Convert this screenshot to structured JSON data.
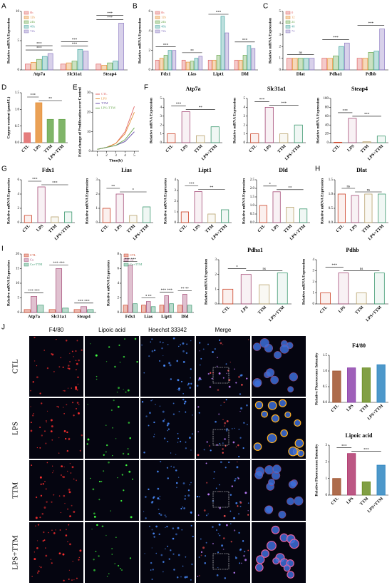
{
  "chart_data": [
    {
      "type": "bar",
      "panel": "A",
      "ylabel": "Relative mRNA Expression",
      "categories": [
        "Atp7a",
        "Slc31a1",
        "Steap4"
      ],
      "series": [
        {
          "name": "0h",
          "color": "#e06666",
          "values": [
            1,
            1,
            1
          ]
        },
        {
          "name": "12h",
          "color": "#e69138",
          "values": [
            1.3,
            1.2,
            0.8
          ]
        },
        {
          "name": "24h",
          "color": "#6aa84f",
          "values": [
            1.8,
            1.5,
            1.2
          ]
        },
        {
          "name": "48h",
          "color": "#45a5a0",
          "values": [
            2.3,
            3.5,
            1.5
          ]
        },
        {
          "name": "72h",
          "color": "#8e7cc3",
          "values": [
            2.8,
            3.2,
            8
          ]
        }
      ],
      "ylim": [
        0,
        10
      ],
      "yticks": [
        0,
        5,
        10
      ],
      "annotations": [
        "***",
        "***",
        "***",
        "***",
        "***",
        "***"
      ]
    },
    {
      "type": "bar",
      "panel": "B",
      "ylabel": "Relative mRNA Expression",
      "categories": [
        "Fdx1",
        "Lias",
        "Lipt1",
        "Dld"
      ],
      "series": [
        {
          "name": "0h",
          "color": "#e06666",
          "values": [
            1,
            1,
            1,
            1
          ]
        },
        {
          "name": "12h",
          "color": "#e69138",
          "values": [
            1.2,
            0.8,
            1,
            1
          ]
        },
        {
          "name": "24h",
          "color": "#6aa84f",
          "values": [
            1.5,
            0.9,
            1.5,
            1.5
          ]
        },
        {
          "name": "48h",
          "color": "#45a5a0",
          "values": [
            2,
            1.2,
            5.5,
            2.5
          ]
        },
        {
          "name": "72h",
          "color": "#8e7cc3",
          "values": [
            2,
            1.4,
            3.8,
            2.2
          ]
        }
      ],
      "ylim": [
        0,
        6
      ],
      "yticks": [
        0,
        2,
        4,
        6
      ],
      "annotations": [
        "***",
        "**",
        "***",
        "***"
      ]
    },
    {
      "type": "bar",
      "panel": "C",
      "ylabel": "Relative mRNA Expression",
      "categories": [
        "Dlat",
        "Pdha1",
        "Pdhb"
      ],
      "series": [
        {
          "name": "0",
          "color": "#e06666",
          "values": [
            1,
            1,
            1
          ]
        },
        {
          "name": "12",
          "color": "#e69138",
          "values": [
            1,
            1,
            1
          ]
        },
        {
          "name": "24",
          "color": "#6aa84f",
          "values": [
            1,
            1.2,
            1.5
          ]
        },
        {
          "name": "48",
          "color": "#45a5a0",
          "values": [
            1,
            2,
            1.6
          ]
        },
        {
          "name": "72",
          "color": "#8e7cc3",
          "values": [
            1,
            2.3,
            3.5
          ]
        }
      ],
      "ylim": [
        0,
        5
      ],
      "yticks": [
        0,
        1,
        2,
        3,
        4,
        5
      ],
      "annotations": [
        "ns",
        "***",
        "***"
      ]
    },
    {
      "type": "bar",
      "panel": "D",
      "ylabel": "Copper content (μmol/L)",
      "categories": [
        "CTL",
        "LPS",
        "TTM",
        "LPS+TTM"
      ],
      "values": [
        0.3,
        1.2,
        0.7,
        0.7
      ],
      "colors": [
        "#e06666",
        "#e69138",
        "#6aa84f",
        "#6aa84f"
      ],
      "filled": true,
      "ylim": [
        0,
        1.5
      ],
      "yticks": [
        {
          "value": 0,
          "label": "0.0"
        },
        {
          "value": 0.5,
          "label": "0.5"
        },
        {
          "value": 1,
          "label": "1.0"
        },
        {
          "value": 1.5,
          "label": "1.5"
        }
      ],
      "annotations": [
        "***",
        "**"
      ]
    },
    {
      "type": "line",
      "panel": "E",
      "ylabel": "Fold-change of Proliferation over Control",
      "xlabel": "Time(h)",
      "x": [
        1,
        2,
        3,
        4,
        5
      ],
      "xlim": [
        0.5,
        5.5
      ],
      "xticks": [
        1,
        2,
        3,
        4,
        5
      ],
      "series": [
        {
          "name": "CTL",
          "color": "#e06666",
          "values": [
            1,
            2,
            4,
            10,
            23
          ]
        },
        {
          "name": "LPS",
          "color": "#e69138",
          "values": [
            1,
            2,
            4,
            9,
            20
          ]
        },
        {
          "name": "TTM",
          "color": "#674ea7",
          "values": [
            1,
            2,
            3,
            5,
            10
          ]
        },
        {
          "name": "LPS+TTM",
          "color": "#6aa84f",
          "values": [
            1,
            2,
            3,
            6,
            12
          ]
        }
      ],
      "ylim": [
        0,
        30
      ],
      "yticks": [
        0,
        10,
        20,
        30
      ]
    },
    {
      "type": "bar",
      "panel": "F",
      "title": "Atp7a",
      "ylabel": "Relative mRNA Expression",
      "categories": [
        "CTL",
        "LPS",
        "TTM",
        "LPS+TTM"
      ],
      "values": [
        1,
        3.5,
        0.8,
        1.8
      ],
      "colors": [
        "#cc4125",
        "#a64d79",
        "#b7a16b",
        "#3d9970"
      ],
      "ylim": [
        0,
        5
      ],
      "yticks": [
        0,
        1,
        2,
        3,
        4,
        5
      ],
      "annotations": [
        "***",
        "**"
      ]
    },
    {
      "type": "bar",
      "title": "Slc31a1",
      "ylabel": "Relative mRNA Expression",
      "categories": [
        "CTL",
        "LPS",
        "TTM",
        "LPS+TTM"
      ],
      "values": [
        1,
        4,
        1,
        2
      ],
      "colors": [
        "#cc4125",
        "#a64d79",
        "#b7a16b",
        "#3d9970"
      ],
      "ylim": [
        0,
        5
      ],
      "yticks": [
        0,
        1,
        2,
        3,
        4,
        5
      ],
      "annotations": [
        "***",
        "***"
      ]
    },
    {
      "type": "bar",
      "title": "Steap4",
      "ylabel": "Relative mRNA Expression",
      "categories": [
        "CTL",
        "LPS",
        "TTM",
        "LPS+TTM"
      ],
      "values": [
        1,
        55,
        2,
        15
      ],
      "colors": [
        "#cc4125",
        "#a64d79",
        "#b7a16b",
        "#3d9970"
      ],
      "ylim": [
        0,
        100
      ],
      "yticks": [
        0,
        20,
        40,
        60,
        80,
        100
      ],
      "annotations": [
        "***",
        "***"
      ]
    },
    {
      "type": "bar",
      "panel": "G",
      "title": "Fdx1",
      "ylabel": "Relative mRNA Expression",
      "categories": [
        "CTL",
        "LPS",
        "TTM",
        "LPS+TTM"
      ],
      "values": [
        1,
        5,
        0.8,
        1.5
      ],
      "colors": [
        "#cc4125",
        "#a64d79",
        "#b7a16b",
        "#3d9970"
      ],
      "ylim": [
        0,
        6
      ],
      "yticks": [
        0,
        2,
        4,
        6
      ],
      "annotations": [
        "***",
        "***"
      ]
    },
    {
      "type": "bar",
      "title": "Lias",
      "ylabel": "Relative mRNA Expression",
      "categories": [
        "CTL",
        "LPS",
        "TTM",
        "LPS+TTM"
      ],
      "values": [
        1,
        2,
        0.5,
        1.1
      ],
      "colors": [
        "#cc4125",
        "#a64d79",
        "#b7a16b",
        "#3d9970"
      ],
      "ylim": [
        0,
        3
      ],
      "yticks": [
        0,
        1,
        2,
        3
      ],
      "annotations": [
        "**",
        "*"
      ]
    },
    {
      "type": "bar",
      "title": "Lipt1",
      "ylabel": "Relative mRNA Expression",
      "categories": [
        "CTL",
        "LPS",
        "TTM",
        "LPS+TTM"
      ],
      "values": [
        1,
        2.9,
        0.8,
        1.2
      ],
      "colors": [
        "#cc4125",
        "#a64d79",
        "#b7a16b",
        "#3d9970"
      ],
      "ylim": [
        0,
        4
      ],
      "yticks": [
        0,
        1,
        2,
        3,
        4
      ],
      "annotations": [
        "***",
        "**"
      ]
    },
    {
      "type": "bar",
      "title": "Dld",
      "ylabel": "Relative mRNA Expression",
      "categories": [
        "CTL",
        "LPS",
        "TTM",
        "LPS+TTM"
      ],
      "values": [
        1,
        1.8,
        0.9,
        0.8
      ],
      "colors": [
        "#cc4125",
        "#a64d79",
        "#b7a16b",
        "#3d9970"
      ],
      "ylim": [
        0,
        2.5
      ],
      "yticks": [
        {
          "value": 0,
          "label": "0.0"
        },
        {
          "value": 0.5,
          "label": "0.5"
        },
        {
          "value": 1,
          "label": "1.0"
        },
        {
          "value": 1.5,
          "label": "1.5"
        },
        {
          "value": 2,
          "label": "2.0"
        },
        {
          "value": 2.5,
          "label": "2.5"
        }
      ],
      "annotations": [
        "*",
        "**"
      ]
    },
    {
      "type": "bar",
      "panel": "H",
      "title": "Dlat",
      "ylabel": "Relative mRNA Expression",
      "categories": [
        "CTL",
        "LPS",
        "TTM",
        "LPS+TTM"
      ],
      "values": [
        1,
        0.95,
        1,
        1
      ],
      "colors": [
        "#cc4125",
        "#a64d79",
        "#b7a16b",
        "#3d9970"
      ],
      "ylim": [
        0,
        1.5
      ],
      "yticks": [
        {
          "value": 0,
          "label": "0.0"
        },
        {
          "value": 0.5,
          "label": "0.5"
        },
        {
          "value": 1,
          "label": "1.0"
        },
        {
          "value": 1.5,
          "label": "1.5"
        }
      ],
      "annotations": [
        "ns",
        "ns"
      ]
    },
    {
      "type": "bar",
      "panel": "I",
      "ylabel": "Relative mRNA Expression",
      "categories": [
        "Atp7a",
        "Slc31a1",
        "Steap4"
      ],
      "series": [
        {
          "name": "CTL",
          "color": "#cc4125",
          "values": [
            1,
            1,
            1
          ]
        },
        {
          "name": "Cu",
          "color": "#a64d79",
          "values": [
            5.5,
            15,
            2
          ]
        },
        {
          "name": "Cu+TTM",
          "color": "#3d9970",
          "values": [
            2.5,
            1.5,
            1
          ]
        }
      ],
      "ylim": [
        0,
        20
      ],
      "yticks": [
        0,
        5,
        10,
        15,
        20
      ],
      "annotations": [
        "*** ***",
        "*** ***",
        "*** ***"
      ]
    },
    {
      "type": "bar",
      "ylabel": "Relative mRNA Expression",
      "categories": [
        "Fdx1",
        "Lias",
        "Lipt1",
        "Dld"
      ],
      "series": [
        {
          "name": "CTL",
          "color": "#cc4125",
          "values": [
            1,
            1,
            1,
            1
          ]
        },
        {
          "name": "Cu",
          "color": "#a64d79",
          "values": [
            6.5,
            1.5,
            2.3,
            2.5
          ]
        },
        {
          "name": "Cu+TTM",
          "color": "#3d9970",
          "values": [
            1.2,
            0.8,
            1.2,
            1
          ]
        }
      ],
      "ylim": [
        0,
        8
      ],
      "yticks": [
        0,
        2,
        4,
        6,
        8
      ],
      "annotations": [
        "*** ***",
        "* **",
        "*** ***",
        "** **"
      ]
    },
    {
      "type": "bar",
      "title": "Pdha1",
      "ylabel": "Relative mRNA Expression",
      "categories": [
        "CTL",
        "LPS",
        "TTM",
        "LPS+TTM"
      ],
      "values": [
        1,
        2,
        1.3,
        2.1
      ],
      "colors": [
        "#cc4125",
        "#a64d79",
        "#b7a16b",
        "#3d9970"
      ],
      "ylim": [
        0,
        3
      ],
      "yticks": [
        0,
        1,
        2,
        3
      ],
      "annotations": [
        "*",
        "ns"
      ]
    },
    {
      "type": "bar",
      "title": "Pdhb",
      "ylabel": "Relative mRNA Expression",
      "categories": [
        "CTL",
        "LPS",
        "TTM",
        "LPS+TTM"
      ],
      "values": [
        1,
        2.8,
        1,
        2.8
      ],
      "colors": [
        "#cc4125",
        "#a64d79",
        "#b7a16b",
        "#3d9970"
      ],
      "ylim": [
        0,
        4
      ],
      "yticks": [
        0,
        1,
        2,
        3,
        4
      ],
      "annotations": [
        "***",
        "ns"
      ]
    },
    {
      "type": "bar",
      "title": "F4/80",
      "ylabel": "Relative Fluorescence Intensity",
      "categories": [
        "CTL",
        "LPS",
        "TTM",
        "LPS+TTM"
      ],
      "values": [
        1,
        1.1,
        1.1,
        1.2
      ],
      "colors": [
        "#a0522d",
        "#8e44ad",
        "#6b8e23",
        "#2e86c1"
      ],
      "filled": true,
      "ylim": [
        0,
        1.5
      ],
      "yticks": [
        {
          "value": 0,
          "label": "0.0"
        },
        {
          "value": 0.5,
          "label": "0.5"
        },
        {
          "value": 1,
          "label": "1.0"
        },
        {
          "value": 1.5,
          "label": "1.5"
        }
      ]
    },
    {
      "type": "bar",
      "title": "Lipoic acid",
      "ylabel": "Relative Fluorescence Intensity",
      "categories": [
        "CTL",
        "LPS",
        "TTM",
        "LPS+TTM"
      ],
      "values": [
        1,
        2.5,
        0.8,
        1.8
      ],
      "colors": [
        "#a0522d",
        "#b03a6e",
        "#6b8e23",
        "#2e86c1"
      ],
      "filled": true,
      "ylim": [
        0,
        3
      ],
      "yticks": [
        0,
        1,
        2,
        3
      ],
      "annotations": [
        "***",
        "***"
      ]
    }
  ],
  "micrograph": {
    "panel": "J",
    "columns": [
      "F4/80",
      "Lipoic acid",
      "Hoechst 33342",
      "Merge"
    ],
    "rows": [
      "CTL",
      "LPS",
      "TTM",
      "LPS+TTM"
    ]
  }
}
